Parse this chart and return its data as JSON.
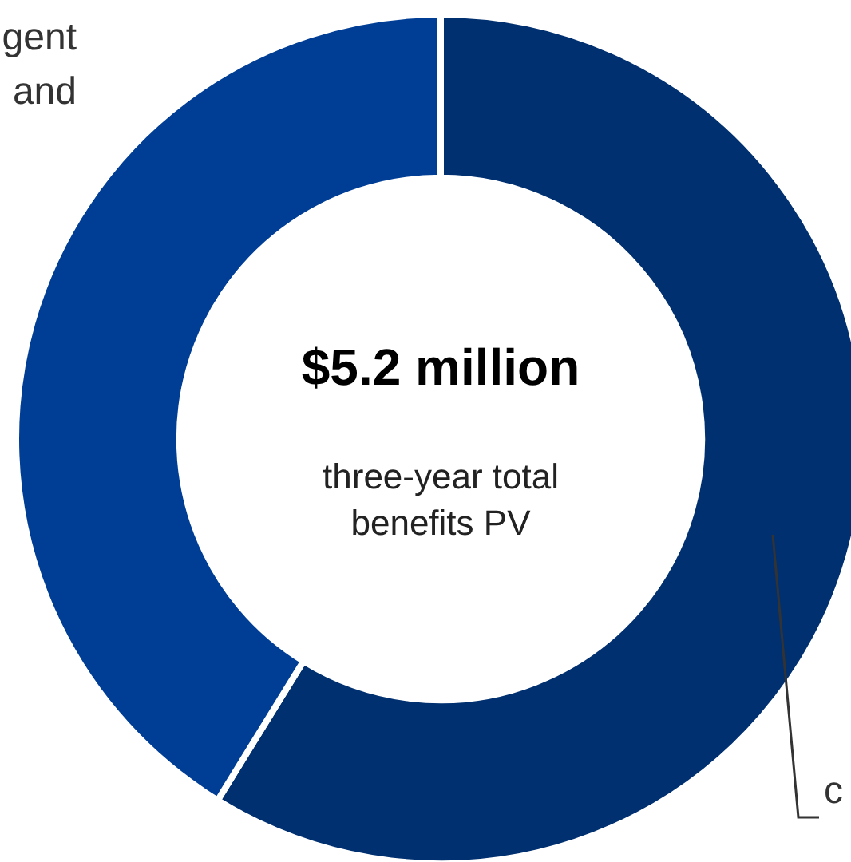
{
  "chart_data": {
    "type": "donut",
    "title": "$5.2 million",
    "subtitle": "three-year total benefits PV",
    "categories": [
      null,
      null
    ],
    "values": [
      58.8,
      41.2
    ],
    "colors": [
      "#003070",
      "#003e96"
    ],
    "annotations": [
      "gent",
      "and",
      "c"
    ],
    "legend": false
  }
}
